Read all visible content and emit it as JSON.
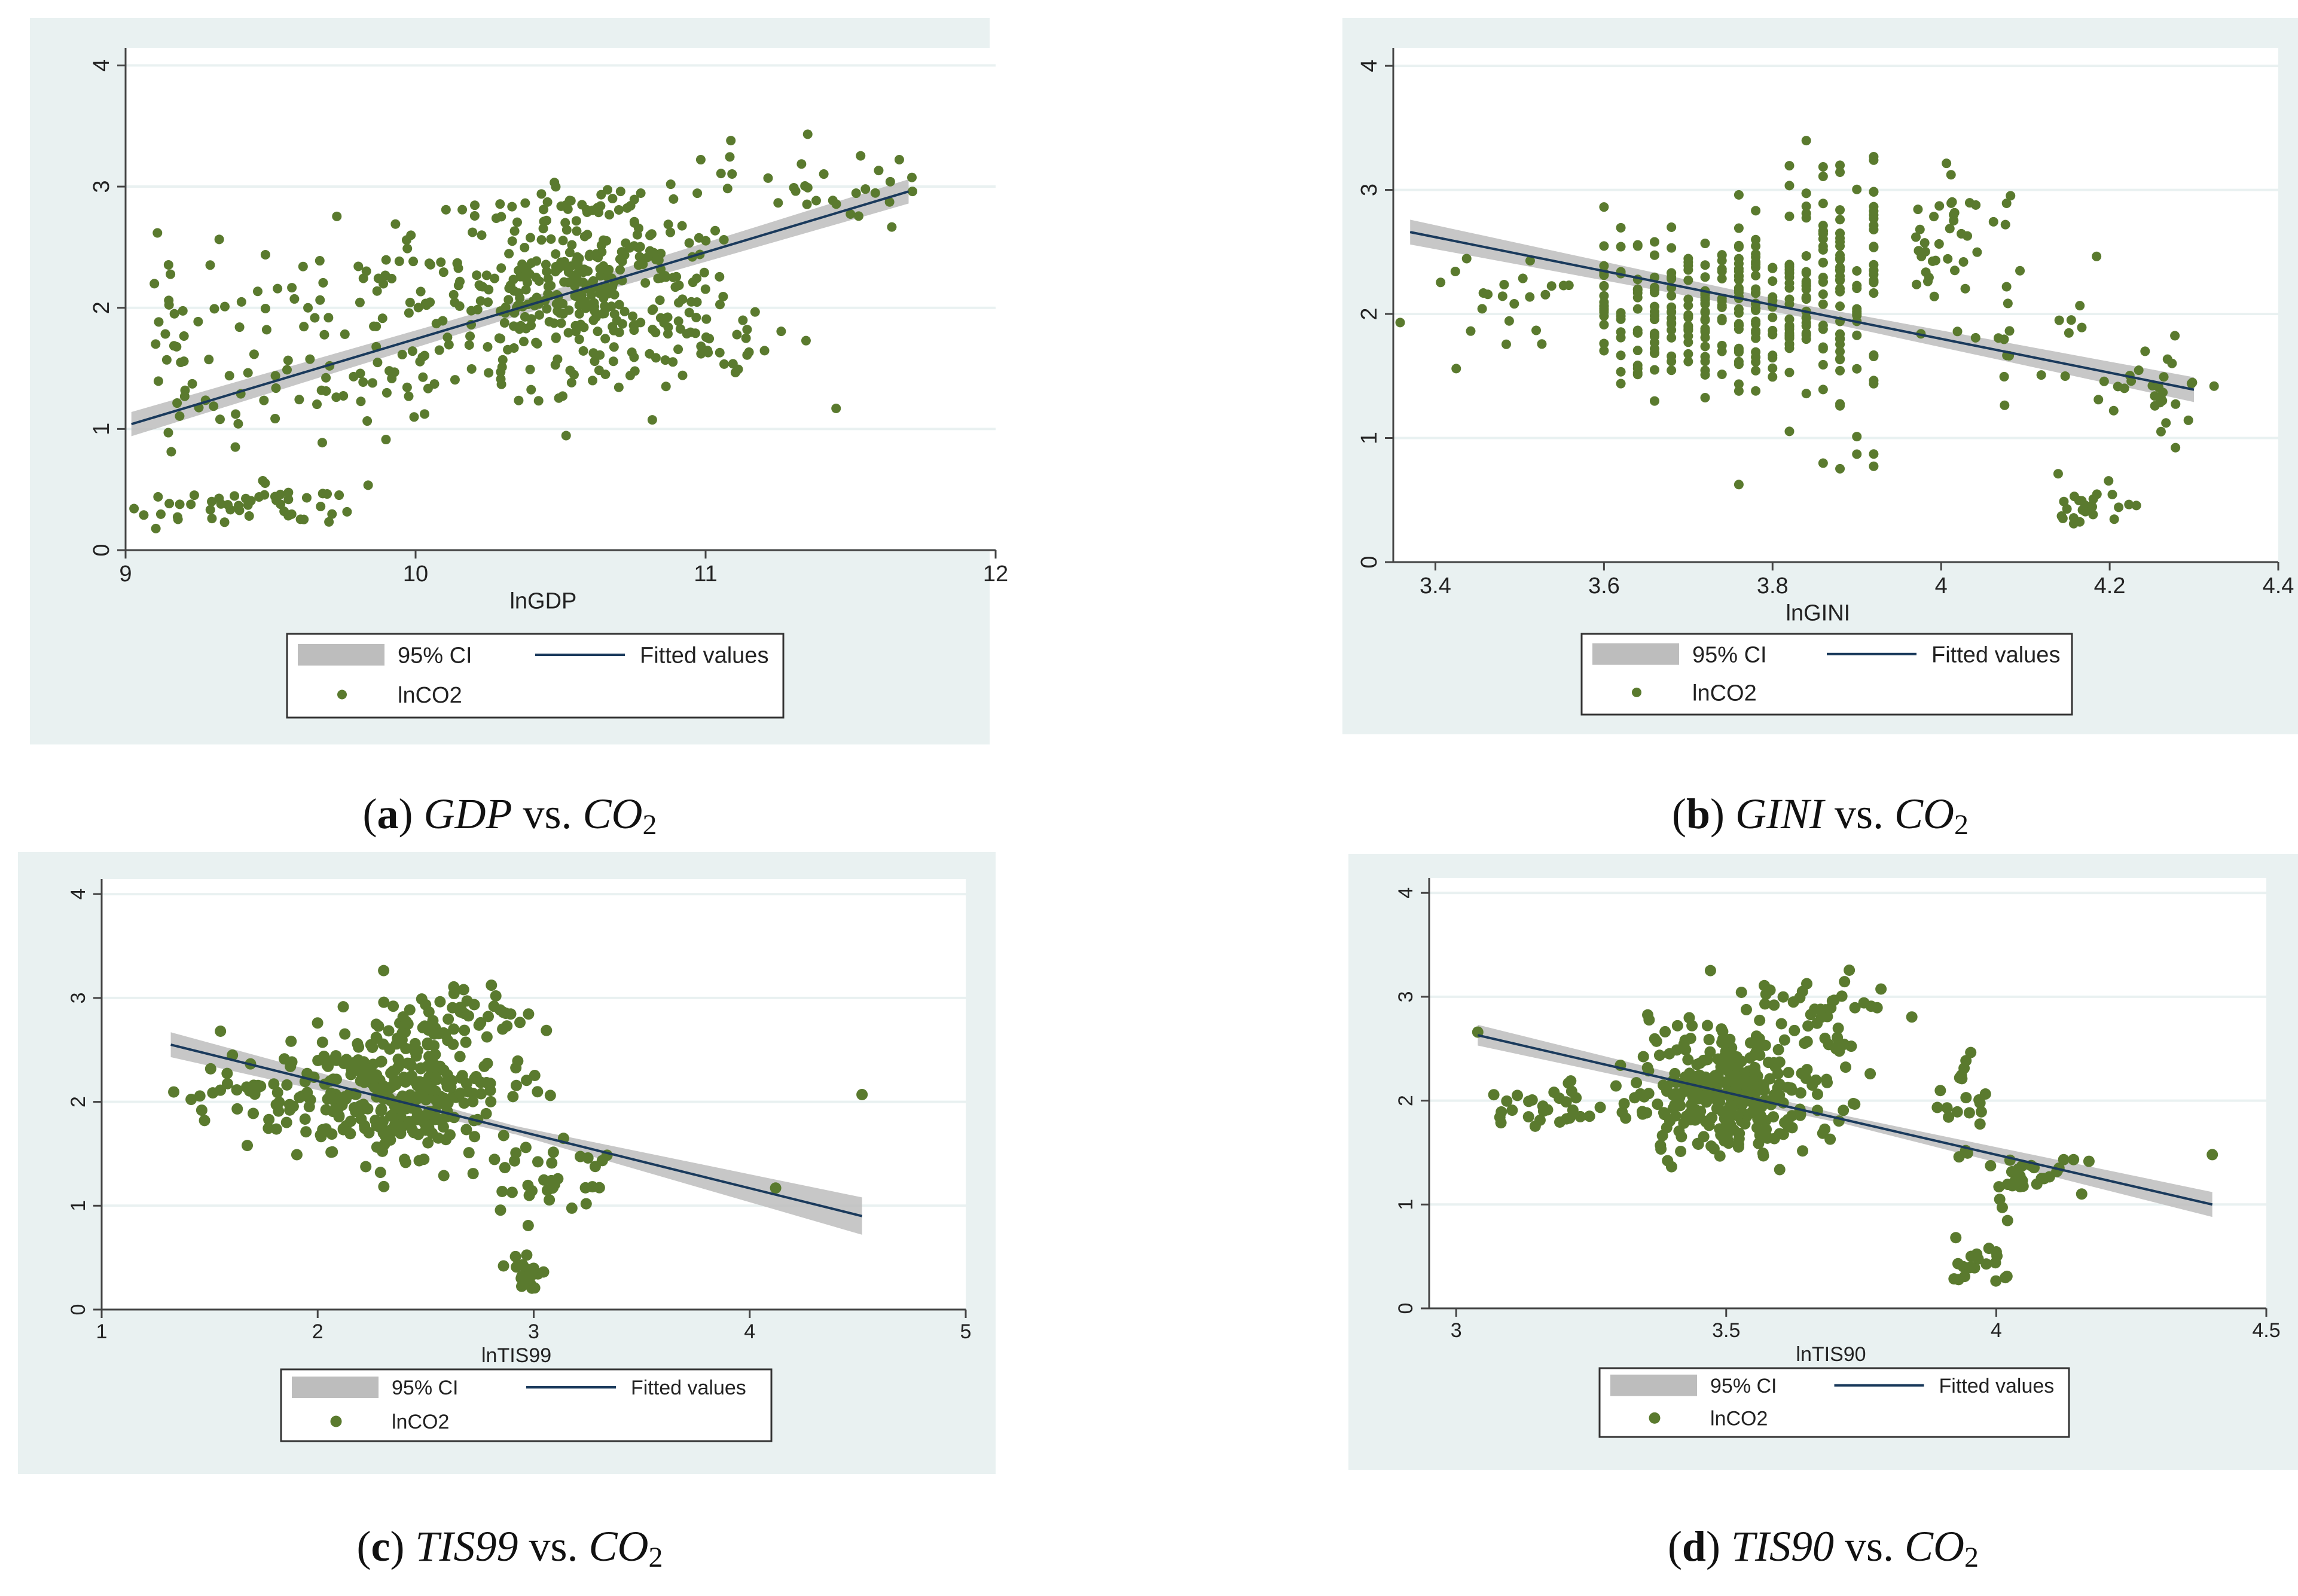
{
  "figure": {
    "colors": {
      "panel_bg": "#e9f1f1",
      "plot_bg": "#ffffff",
      "grid": "#e9f1f1",
      "point": "#5a7a2e",
      "fit_line": "#1a3a5c",
      "ci_band": "#bdbdbd",
      "axis": "#444444"
    }
  },
  "chart_data": [
    {
      "type": "scatter",
      "id": "a",
      "caption": {
        "letter": "a",
        "var": "GDP",
        "vs": "vs.",
        "y": "CO",
        "sub": "2"
      },
      "xlabel": "lnGDP",
      "ylabel": "",
      "xlim": [
        9,
        12
      ],
      "ylim": [
        0,
        4
      ],
      "xticks": [
        9,
        10,
        11,
        12
      ],
      "yticks": [
        0,
        1,
        2,
        3,
        4
      ],
      "fit": {
        "x": [
          9.02,
          11.7
        ],
        "y": [
          1.04,
          2.96
        ],
        "ci_halfwidth": [
          0.1,
          0.06,
          0.1
        ]
      },
      "legend": {
        "ci": "95% CI",
        "fit": "Fitted values",
        "points": "lnCO2"
      },
      "clusters": [
        {
          "cx": 10.6,
          "cy": 2.2,
          "sx": 0.22,
          "sy": 0.28,
          "n": 260
        },
        {
          "cx": 10.4,
          "cy": 1.8,
          "sx": 0.35,
          "sy": 0.35,
          "n": 80
        },
        {
          "cx": 9.8,
          "cy": 2.05,
          "sx": 0.4,
          "sy": 0.25,
          "n": 60
        },
        {
          "cx": 9.7,
          "cy": 1.3,
          "sx": 0.3,
          "sy": 0.2,
          "n": 50
        },
        {
          "cx": 10.5,
          "cy": 2.85,
          "sx": 0.3,
          "sy": 0.1,
          "n": 40
        },
        {
          "cx": 9.4,
          "cy": 0.4,
          "sx": 0.25,
          "sy": 0.1,
          "n": 55
        },
        {
          "cx": 9.15,
          "cy": 1.8,
          "sx": 0.06,
          "sy": 0.4,
          "n": 20
        },
        {
          "cx": 11.45,
          "cy": 3.05,
          "sx": 0.22,
          "sy": 0.18,
          "n": 30
        },
        {
          "cx": 10.95,
          "cy": 1.75,
          "sx": 0.15,
          "sy": 0.18,
          "n": 25
        }
      ]
    },
    {
      "type": "scatter",
      "id": "b",
      "caption": {
        "letter": "b",
        "var": "GINI",
        "vs": "vs.",
        "y": "CO",
        "sub": "2"
      },
      "xlabel": "lnGINI",
      "ylabel": "",
      "xlim": [
        3.35,
        4.4
      ],
      "ylim": [
        0,
        4
      ],
      "xticks": [
        3.4,
        3.6,
        3.8,
        4,
        4.2,
        4.4
      ],
      "yticks": [
        0,
        1,
        2,
        3,
        4
      ],
      "fit": {
        "x": [
          3.37,
          4.3
        ],
        "y": [
          2.66,
          1.39
        ],
        "ci_halfwidth": [
          0.1,
          0.05,
          0.1
        ]
      },
      "legend": {
        "ci": "95% CI",
        "fit": "Fitted values",
        "points": "lnCO2"
      },
      "columns": [
        3.6,
        3.62,
        3.64,
        3.66,
        3.68,
        3.7,
        3.72,
        3.74,
        3.76,
        3.78,
        3.8,
        3.82,
        3.84,
        3.86,
        3.88,
        3.9,
        3.92
      ],
      "clusters": [
        {
          "cx": 3.72,
          "cy": 2.0,
          "sx": 0.07,
          "sy": 0.3,
          "n": 220
        },
        {
          "cx": 3.86,
          "cy": 2.2,
          "sx": 0.05,
          "sy": 0.55,
          "n": 150
        },
        {
          "cx": 3.5,
          "cy": 2.1,
          "sx": 0.08,
          "sy": 0.2,
          "n": 30
        },
        {
          "cx": 4.0,
          "cy": 2.6,
          "sx": 0.04,
          "sy": 0.3,
          "n": 40
        },
        {
          "cx": 4.1,
          "cy": 1.8,
          "sx": 0.05,
          "sy": 0.35,
          "n": 20
        },
        {
          "cx": 4.25,
          "cy": 1.35,
          "sx": 0.03,
          "sy": 0.2,
          "n": 30
        },
        {
          "cx": 4.18,
          "cy": 0.45,
          "sx": 0.03,
          "sy": 0.12,
          "n": 25
        }
      ]
    },
    {
      "type": "scatter",
      "id": "c",
      "caption": {
        "letter": "c",
        "var": "TIS99",
        "vs": "vs.",
        "y": "CO",
        "sub": "2"
      },
      "xlabel": "lnTIS99",
      "ylabel": "",
      "xlim": [
        1,
        5
      ],
      "ylim": [
        0,
        4
      ],
      "xticks": [
        1,
        2,
        3,
        4,
        5
      ],
      "yticks": [
        0,
        1,
        2,
        3,
        4
      ],
      "fit": {
        "x": [
          1.32,
          4.52
        ],
        "y": [
          2.55,
          0.9
        ],
        "ci_halfwidth": [
          0.12,
          0.04,
          0.18
        ]
      },
      "legend": {
        "ci": "95% CI",
        "fit": "Fitted values",
        "points": "lnCO2"
      },
      "clusters": [
        {
          "cx": 2.35,
          "cy": 2.05,
          "sx": 0.25,
          "sy": 0.35,
          "n": 330
        },
        {
          "cx": 2.7,
          "cy": 2.8,
          "sx": 0.18,
          "sy": 0.2,
          "n": 45
        },
        {
          "cx": 1.8,
          "cy": 2.05,
          "sx": 0.2,
          "sy": 0.15,
          "n": 30
        },
        {
          "cx": 3.1,
          "cy": 1.3,
          "sx": 0.15,
          "sy": 0.18,
          "n": 35
        },
        {
          "cx": 2.95,
          "cy": 0.35,
          "sx": 0.05,
          "sy": 0.12,
          "n": 18
        }
      ],
      "singles": [
        {
          "x": 4.52,
          "y": 2.07
        },
        {
          "x": 4.12,
          "y": 1.17
        },
        {
          "x": 1.55,
          "y": 2.68
        }
      ]
    },
    {
      "type": "scatter",
      "id": "d",
      "caption": {
        "letter": "d",
        "var": "TIS90",
        "vs": "vs.",
        "y": "CO",
        "sub": "2"
      },
      "xlabel": "lnTIS90",
      "ylabel": "",
      "xlim": [
        2.95,
        4.5
      ],
      "ylim": [
        0,
        4
      ],
      "xticks": [
        3,
        3.5,
        4,
        4.5
      ],
      "yticks": [
        0,
        1,
        2,
        3,
        4
      ],
      "fit": {
        "x": [
          3.04,
          4.4
        ],
        "y": [
          2.63,
          1.0
        ],
        "ci_halfwidth": [
          0.1,
          0.04,
          0.12
        ]
      },
      "legend": {
        "ci": "95% CI",
        "fit": "Fitted values",
        "points": "lnCO2"
      },
      "clusters": [
        {
          "cx": 3.5,
          "cy": 2.05,
          "sx": 0.09,
          "sy": 0.3,
          "n": 320
        },
        {
          "cx": 3.68,
          "cy": 2.85,
          "sx": 0.08,
          "sy": 0.2,
          "n": 45
        },
        {
          "cx": 3.18,
          "cy": 1.95,
          "sx": 0.07,
          "sy": 0.15,
          "n": 30
        },
        {
          "cx": 3.95,
          "cy": 1.9,
          "sx": 0.03,
          "sy": 0.25,
          "n": 20
        },
        {
          "cx": 4.05,
          "cy": 1.3,
          "sx": 0.06,
          "sy": 0.15,
          "n": 30
        },
        {
          "cx": 3.96,
          "cy": 0.45,
          "sx": 0.03,
          "sy": 0.12,
          "n": 20
        }
      ],
      "singles": [
        {
          "x": 4.4,
          "y": 1.48
        },
        {
          "x": 3.04,
          "y": 2.66
        }
      ]
    }
  ]
}
